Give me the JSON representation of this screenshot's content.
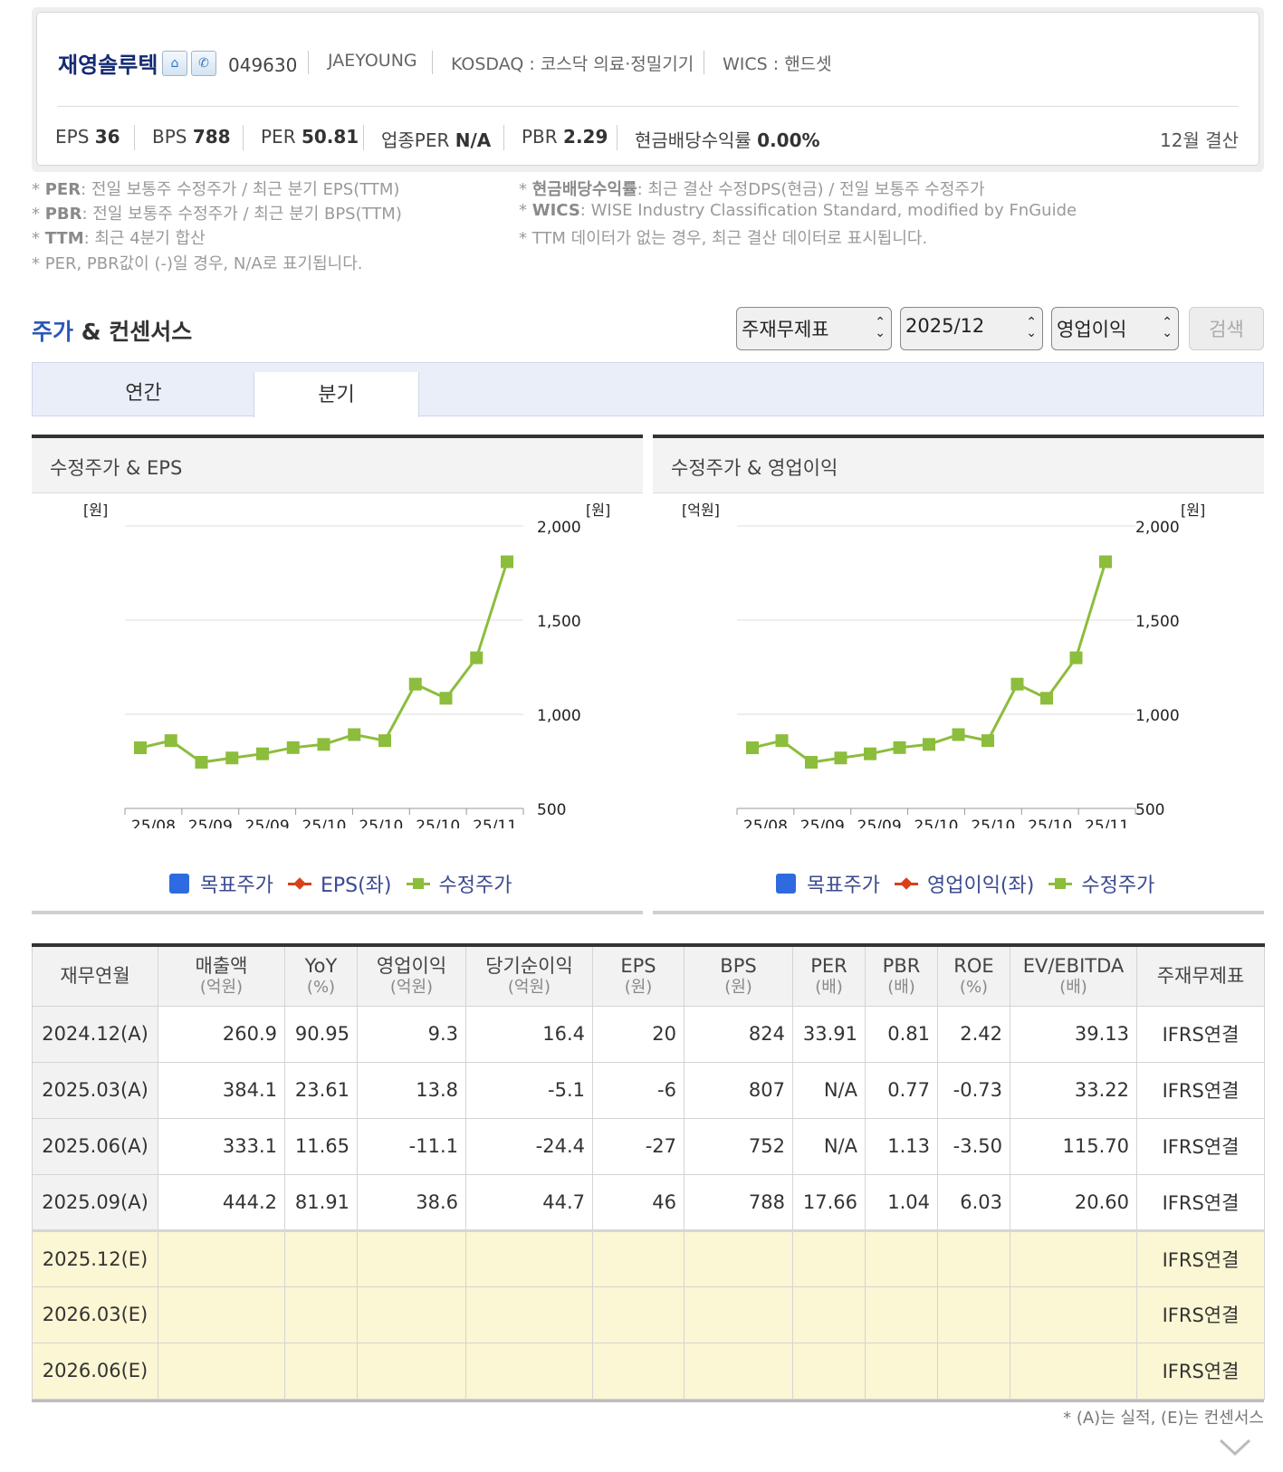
{
  "company": {
    "name": "재영솔루텍",
    "icons": [
      "home-icon",
      "phone-icon"
    ],
    "code": "049630",
    "english_name": "JAEYOUNG",
    "market": "KOSDAQ : 코스닥 의료·정밀기기",
    "wics": "WICS : 핸드셋"
  },
  "stats": {
    "eps_label": "EPS",
    "eps_value": "36",
    "bps_label": "BPS",
    "bps_value": "788",
    "per_label": "PER",
    "per_value": "50.81",
    "industry_per_label": "업종PER",
    "industry_per_value": "N/A",
    "pbr_label": "PBR",
    "pbr_value": "2.29",
    "dividend_label": "현금배당수익률",
    "dividend_value": "0.00%",
    "settlement": "12월 결산"
  },
  "notes": {
    "left": [
      {
        "term": "PER",
        "text": ": 전일 보통주 수정주가 / 최근 분기 EPS(TTM)"
      },
      {
        "term": "PBR",
        "text": ": 전일 보통주 수정주가 / 최근 분기 BPS(TTM)"
      },
      {
        "term": "TTM",
        "text": ": 최근 4분기 합산"
      },
      {
        "term": "",
        "text": "PER, PBR값이 (-)일 경우, N/A로 표기됩니다."
      }
    ],
    "right": [
      {
        "term": "현금배당수익률",
        "text": ": 최근 결산 수정DPS(현금) / 전일 보통주 수정주가"
      },
      {
        "term": "WICS",
        "text": ": WISE Industry Classification Standard, modified by FnGuide"
      },
      {
        "term": "",
        "text": "TTM 데이터가 없는 경우, 최근 결산 데이터로 표시됩니다."
      }
    ]
  },
  "section": {
    "title_highlight": "주가",
    "title_rest": " & 컨센서스",
    "select_statement": "주재무제표",
    "select_period": "2025/12",
    "select_metric": "영업이익",
    "search_label": "검색"
  },
  "tabs": [
    {
      "label": "연간",
      "active": false
    },
    {
      "label": "분기",
      "active": true
    }
  ],
  "charts": [
    {
      "title": "수정주가 & EPS",
      "left_unit": "[원]",
      "right_unit": "[원]",
      "legend": [
        "목표주가",
        "EPS(좌)",
        "수정주가"
      ]
    },
    {
      "title": "수정주가 & 영업이익",
      "left_unit": "[억원]",
      "right_unit": "[원]",
      "legend": [
        "목표주가",
        "영업이익(좌)",
        "수정주가"
      ]
    }
  ],
  "chart_data": [
    {
      "type": "line",
      "title": "수정주가 & EPS",
      "x_tick_labels": [
        "25/08",
        "25/09",
        "25/09",
        "25/10",
        "25/10",
        "25/10",
        "25/11"
      ],
      "right_ylim": [
        500,
        2000
      ],
      "right_yticks": [
        "2,000",
        "1,500",
        "1,000",
        "500"
      ],
      "series": [
        {
          "name": "수정주가",
          "axis": "right",
          "values": [
            822,
            860,
            745,
            768,
            790,
            823,
            840,
            892,
            860,
            1160,
            1085,
            1300,
            1810
          ]
        }
      ],
      "grid": true,
      "legend_position": "bottom"
    },
    {
      "type": "line",
      "title": "수정주가 & 영업이익",
      "x_tick_labels": [
        "25/08",
        "25/09",
        "25/09",
        "25/10",
        "25/10",
        "25/10",
        "25/11"
      ],
      "right_ylim": [
        500,
        2000
      ],
      "right_yticks": [
        "2,000",
        "1,500",
        "1,000",
        "500"
      ],
      "series": [
        {
          "name": "수정주가",
          "axis": "right",
          "values": [
            822,
            860,
            745,
            768,
            790,
            823,
            840,
            892,
            860,
            1160,
            1085,
            1300,
            1810
          ]
        }
      ],
      "grid": true,
      "legend_position": "bottom"
    }
  ],
  "table": {
    "headers": [
      {
        "label": "재무연월",
        "unit": ""
      },
      {
        "label": "매출액",
        "unit": "(억원)"
      },
      {
        "label": "YoY",
        "unit": "(%)"
      },
      {
        "label": "영업이익",
        "unit": "(억원)"
      },
      {
        "label": "당기순이익",
        "unit": "(억원)"
      },
      {
        "label": "EPS",
        "unit": "(원)"
      },
      {
        "label": "BPS",
        "unit": "(원)"
      },
      {
        "label": "PER",
        "unit": "(배)"
      },
      {
        "label": "PBR",
        "unit": "(배)"
      },
      {
        "label": "ROE",
        "unit": "(%)"
      },
      {
        "label": "EV/EBITDA",
        "unit": "(배)"
      },
      {
        "label": "주재무제표",
        "unit": ""
      }
    ],
    "rows": [
      [
        "2024.12(A)",
        "260.9",
        "90.95",
        "9.3",
        "16.4",
        "20",
        "824",
        "33.91",
        "0.81",
        "2.42",
        "39.13",
        "IFRS연결"
      ],
      [
        "2025.03(A)",
        "384.1",
        "23.61",
        "13.8",
        "-5.1",
        "-6",
        "807",
        "N/A",
        "0.77",
        "-0.73",
        "33.22",
        "IFRS연결"
      ],
      [
        "2025.06(A)",
        "333.1",
        "11.65",
        "-11.1",
        "-24.4",
        "-27",
        "752",
        "N/A",
        "1.13",
        "-3.50",
        "115.70",
        "IFRS연결"
      ],
      [
        "2025.09(A)",
        "444.2",
        "81.91",
        "38.6",
        "44.7",
        "46",
        "788",
        "17.66",
        "1.04",
        "6.03",
        "20.60",
        "IFRS연결"
      ],
      [
        "2025.12(E)",
        "",
        "",
        "",
        "",
        "",
        "",
        "",
        "",
        "",
        "",
        "IFRS연결"
      ],
      [
        "2026.03(E)",
        "",
        "",
        "",
        "",
        "",
        "",
        "",
        "",
        "",
        "",
        "IFRS연결"
      ],
      [
        "2026.06(E)",
        "",
        "",
        "",
        "",
        "",
        "",
        "",
        "",
        "",
        "",
        "IFRS연결"
      ]
    ],
    "footnote": "* (A)는 실적, (E)는 컨센서스"
  },
  "colors": {
    "brand_navy": "#142a72",
    "highlight_blue": "#2d58b8",
    "price_line": "#8cbd3c",
    "eps_marker": "#d9401c",
    "target_marker": "#2e6be0",
    "estimate_row_bg": "#fbf6d3"
  }
}
